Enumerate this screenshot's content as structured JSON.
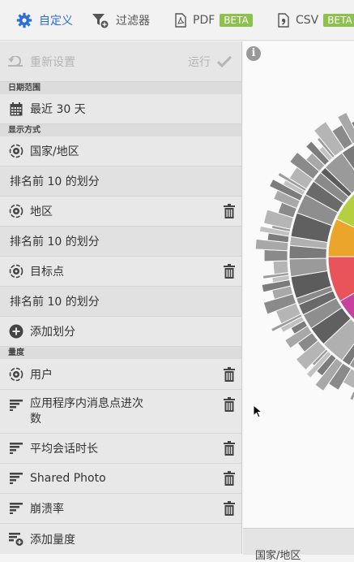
{
  "toolbar": {
    "customize": "自定义",
    "filter": "过滤器",
    "pdf": "PDF",
    "pdf_badge": "BETA",
    "csv": "CSV",
    "csv_badge": "BETA",
    "accent": "#2a6fd6",
    "badge_color": "#8bc34a"
  },
  "runbar": {
    "reset": "重新设置",
    "run": "运行"
  },
  "sections": {
    "date_range": "日期范围",
    "display": "显示方式",
    "metrics": "量度"
  },
  "date_range": {
    "value": "最近 30 天"
  },
  "breakdowns": [
    {
      "label": "国家/地区",
      "sub": "排名前 10 的划分"
    },
    {
      "label": "地区",
      "sub": "排名前 10 的划分"
    },
    {
      "label": "目标点",
      "sub": "排名前 10 的划分"
    }
  ],
  "add_breakdown": "添加划分",
  "metrics": [
    {
      "label": "用户"
    },
    {
      "label": "应用程序内消息点进次",
      "label2": "数"
    },
    {
      "label": "平均会话时长"
    },
    {
      "label": "Shared Photo"
    },
    {
      "label": "崩溃率"
    }
  ],
  "add_metric": "添加量度",
  "info_icon": "i",
  "footer": {
    "label": "国家/地区"
  },
  "chart_colors": {
    "green": "#b5cf3e",
    "orange": "#eba52a",
    "red": "#e9545a",
    "magenta": "#c9409f",
    "gray": "#8c8c8c"
  }
}
